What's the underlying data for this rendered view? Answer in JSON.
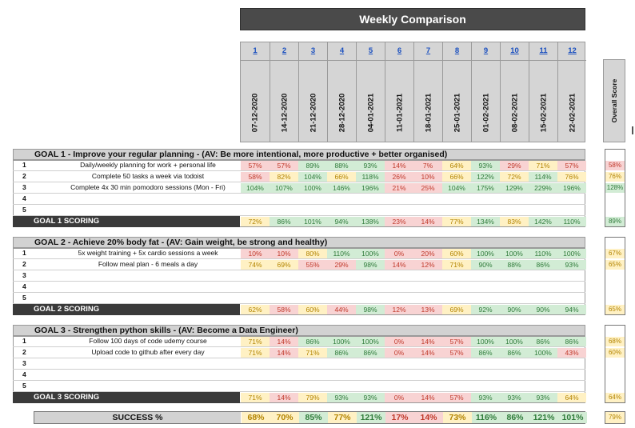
{
  "title": "Weekly Comparison",
  "weeks": [
    "1",
    "2",
    "3",
    "4",
    "5",
    "6",
    "7",
    "8",
    "9",
    "10",
    "11",
    "12"
  ],
  "dates": [
    "07-12-2020",
    "14-12-2020",
    "21-12-2020",
    "28-12-2020",
    "04-01-2021",
    "11-01-2021",
    "18-01-2021",
    "25-01-2021",
    "01-02-2021",
    "08-02-2021",
    "15-02-2021",
    "22-02-2021"
  ],
  "overall_label": "Overall Score",
  "colors": {
    "green_bg": "#d2ecd5",
    "green_fg": "#2f7b3a",
    "yellow_bg": "#fff1c4",
    "yellow_fg": "#b38400",
    "red_bg": "#f8d3d3",
    "red_fg": "#c0392b",
    "dark_bar": "#3a3a3a",
    "grey_bar": "#d2d2d2"
  },
  "goals": [
    {
      "title": "GOAL 1 - Improve your regular planning - (AV: Be more intentional, more productive + better organised)",
      "score_label": "GOAL 1 SCORING",
      "rows": [
        {
          "num": "1",
          "desc": "Daily/weekly planning for work + personal life",
          "values": [
            "57%",
            "57%",
            "89%",
            "88%",
            "93%",
            "14%",
            "7%",
            "64%",
            "93%",
            "29%",
            "71%",
            "57%"
          ],
          "overall": "58%"
        },
        {
          "num": "2",
          "desc": "Complete 50 tasks a week via todoist",
          "values": [
            "58%",
            "82%",
            "104%",
            "66%",
            "118%",
            "26%",
            "10%",
            "66%",
            "122%",
            "72%",
            "114%",
            "76%"
          ],
          "overall": "76%"
        },
        {
          "num": "3",
          "desc": "Complete 4x 30 min pomodoro sessions (Mon - Fri)",
          "values": [
            "104%",
            "107%",
            "100%",
            "146%",
            "196%",
            "21%",
            "25%",
            "104%",
            "175%",
            "129%",
            "229%",
            "196%"
          ],
          "overall": "128%"
        },
        {
          "num": "4",
          "desc": "",
          "values": [
            "",
            "",
            "",
            "",
            "",
            "",
            "",
            "",
            "",
            "",
            "",
            ""
          ],
          "overall": ""
        },
        {
          "num": "5",
          "desc": "",
          "values": [
            "",
            "",
            "",
            "",
            "",
            "",
            "",
            "",
            "",
            "",
            "",
            ""
          ],
          "overall": ""
        }
      ],
      "scores": [
        "72%",
        "86%",
        "101%",
        "94%",
        "138%",
        "23%",
        "14%",
        "77%",
        "134%",
        "83%",
        "142%",
        "110%"
      ],
      "score_overall": "89%"
    },
    {
      "title": "GOAL 2 - Achieve 20% body fat - (AV: Gain weight, be strong and healthy)",
      "score_label": "GOAL 2 SCORING",
      "rows": [
        {
          "num": "1",
          "desc": "5x weight training + 5x cardio sessions a week",
          "values": [
            "10%",
            "10%",
            "80%",
            "110%",
            "100%",
            "0%",
            "20%",
            "60%",
            "100%",
            "100%",
            "110%",
            "100%"
          ],
          "overall": "67%"
        },
        {
          "num": "2",
          "desc": "Follow meal plan - 6 meals a day",
          "values": [
            "74%",
            "69%",
            "55%",
            "29%",
            "98%",
            "14%",
            "12%",
            "71%",
            "90%",
            "88%",
            "86%",
            "93%"
          ],
          "overall": "65%"
        },
        {
          "num": "3",
          "desc": "",
          "values": [
            "",
            "",
            "",
            "",
            "",
            "",
            "",
            "",
            "",
            "",
            "",
            ""
          ],
          "overall": ""
        },
        {
          "num": "4",
          "desc": "",
          "values": [
            "",
            "",
            "",
            "",
            "",
            "",
            "",
            "",
            "",
            "",
            "",
            ""
          ],
          "overall": ""
        },
        {
          "num": "5",
          "desc": "",
          "values": [
            "",
            "",
            "",
            "",
            "",
            "",
            "",
            "",
            "",
            "",
            "",
            ""
          ],
          "overall": ""
        }
      ],
      "scores": [
        "62%",
        "58%",
        "60%",
        "44%",
        "98%",
        "12%",
        "13%",
        "69%",
        "92%",
        "90%",
        "90%",
        "94%"
      ],
      "score_overall": "65%"
    },
    {
      "title": "GOAL 3 - Strengthen python skills - (AV: Become a Data Engineer)",
      "score_label": "GOAL 3 SCORING",
      "rows": [
        {
          "num": "1",
          "desc": "Follow 100 days of code udemy course",
          "values": [
            "71%",
            "14%",
            "86%",
            "100%",
            "100%",
            "0%",
            "14%",
            "57%",
            "100%",
            "100%",
            "86%",
            "86%"
          ],
          "overall": "68%"
        },
        {
          "num": "2",
          "desc": "Upload code to github after every day",
          "values": [
            "71%",
            "14%",
            "71%",
            "86%",
            "86%",
            "0%",
            "14%",
            "57%",
            "86%",
            "86%",
            "100%",
            "43%"
          ],
          "overall": "60%"
        },
        {
          "num": "3",
          "desc": "",
          "values": [
            "",
            "",
            "",
            "",
            "",
            "",
            "",
            "",
            "",
            "",
            "",
            ""
          ],
          "overall": ""
        },
        {
          "num": "4",
          "desc": "",
          "values": [
            "",
            "",
            "",
            "",
            "",
            "",
            "",
            "",
            "",
            "",
            "",
            ""
          ],
          "overall": ""
        },
        {
          "num": "5",
          "desc": "",
          "values": [
            "",
            "",
            "",
            "",
            "",
            "",
            "",
            "",
            "",
            "",
            "",
            ""
          ],
          "overall": ""
        }
      ],
      "scores": [
        "71%",
        "14%",
        "79%",
        "93%",
        "93%",
        "0%",
        "14%",
        "57%",
        "93%",
        "93%",
        "93%",
        "64%"
      ],
      "score_overall": "64%"
    }
  ],
  "success": {
    "label": "SUCCESS %",
    "values": [
      "68%",
      "70%",
      "85%",
      "77%",
      "121%",
      "17%",
      "14%",
      "73%",
      "116%",
      "86%",
      "121%",
      "101%"
    ],
    "overall": "79%"
  }
}
